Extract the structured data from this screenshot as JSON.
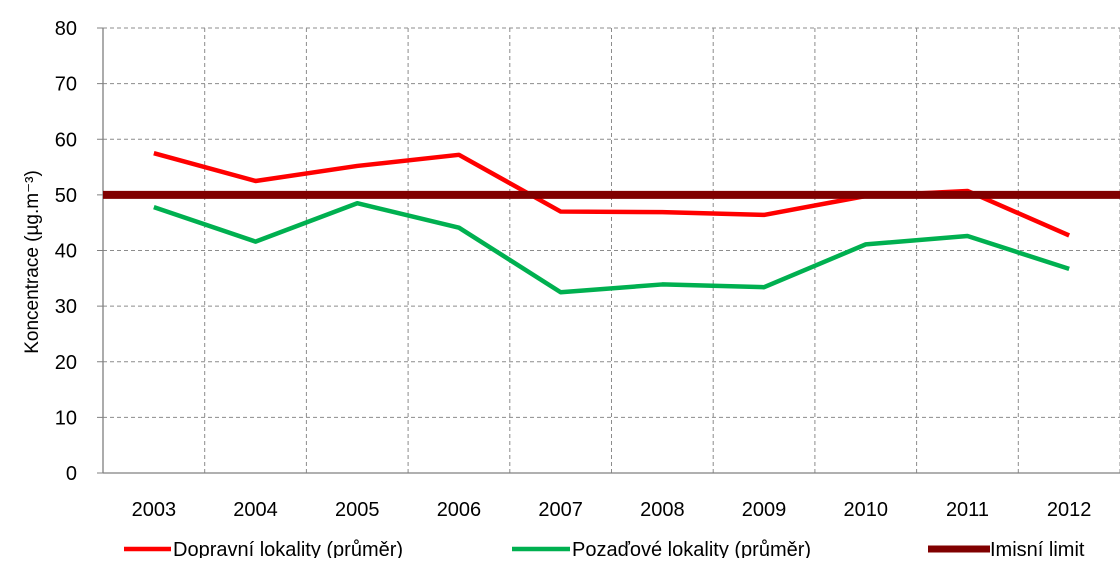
{
  "chart_data": {
    "type": "line",
    "categories": [
      "2003",
      "2004",
      "2005",
      "2006",
      "2007",
      "2008",
      "2009",
      "2010",
      "2011",
      "2012"
    ],
    "ylabel": "Koncentrace (µg.m⁻³)",
    "ylim": [
      0,
      80
    ],
    "yticks": [
      0,
      10,
      20,
      30,
      40,
      50,
      60,
      70,
      80
    ],
    "grid": true,
    "legend_position": "bottom",
    "series": [
      {
        "name": "Dopravní lokality (průměr)",
        "color": "#ff0000",
        "values": [
          57.5,
          52.5,
          55.2,
          57.2,
          47.0,
          46.9,
          46.4,
          49.8,
          50.7,
          42.7
        ]
      },
      {
        "name": "Pozaďové lokality (průměr)",
        "color": "#00b050",
        "values": [
          47.8,
          41.6,
          48.5,
          44.1,
          32.5,
          33.9,
          33.4,
          41.1,
          42.6,
          36.7
        ]
      },
      {
        "name": "Imisní limit",
        "color": "#800000",
        "values": [
          50,
          50,
          50,
          50,
          50,
          50,
          50,
          50,
          50,
          50
        ]
      }
    ]
  }
}
